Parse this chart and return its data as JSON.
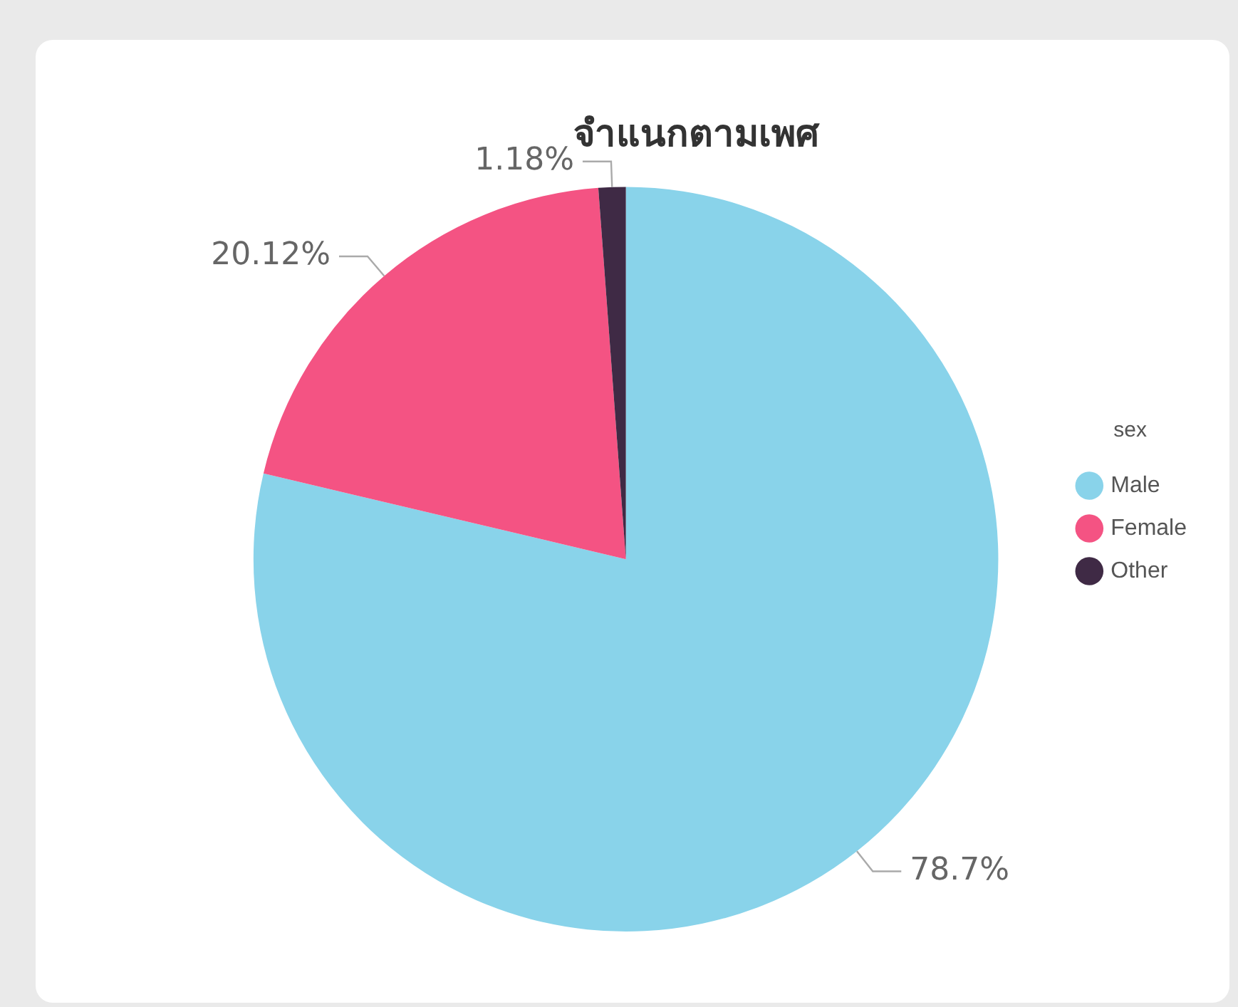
{
  "chart_data": {
    "type": "pie",
    "title": "จำแนกตามเพศ",
    "legend_title": "sex",
    "legend": "right",
    "categories": [
      "Male",
      "Female",
      "Other"
    ],
    "values": [
      78.7,
      20.12,
      1.18
    ],
    "value_labels": [
      "78.7%",
      "20.12%",
      "1.18%"
    ],
    "colors": [
      "#89d3ea",
      "#f45383",
      "#3f2a45"
    ]
  }
}
